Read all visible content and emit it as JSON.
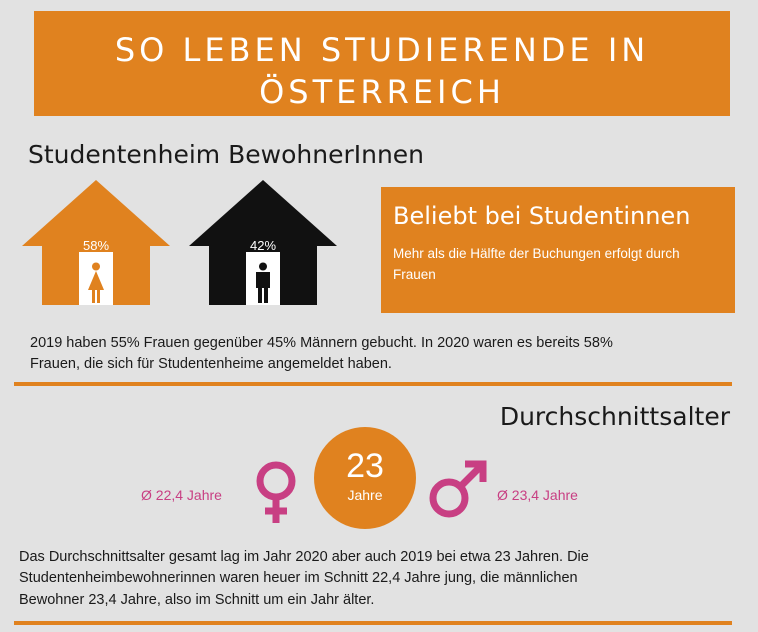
{
  "banner": {
    "line1": "SO LEBEN STUDIERENDE IN",
    "line2": "ÖSTERREICH"
  },
  "section1": {
    "heading": "Studentenheim BewohnerInnen",
    "female_percent": "58%",
    "male_percent": "42%",
    "callout_heading": "Beliebt bei Studentinnen",
    "callout_text": "Mehr als die Hälfte der Buchungen erfolgt durch Frauen",
    "paragraph_line1": "2019 haben 55% Frauen gegenüber 45% Männern gebucht. In 2020 waren es bereits 58%",
    "paragraph_line2": "Frauen, die sich für Studentenheime angemeldet haben."
  },
  "section2": {
    "heading": "Durchschnittsalter",
    "average_age": "23",
    "average_age_unit": "Jahre",
    "female_avg": "Ø 22,4 Jahre",
    "male_avg": "Ø 23,4 Jahre",
    "paragraph_line1": "Das Durchschnittsalter gesamt lag im Jahr 2020 aber auch 2019 bei etwa 23 Jahren. Die",
    "paragraph_line2": "Studentenheimbewohnerinnen waren heuer im Schnitt 22,4 Jahre jung, die männlichen",
    "paragraph_line3": "Bewohner 23,4 Jahre, also im Schnitt um ein Jahr älter."
  },
  "colors": {
    "accent": "#e0821f",
    "female_symbol": "#c83f83",
    "male_house": "#111111",
    "background": "#e2e2e2"
  },
  "icons": [
    "house-icon",
    "woman-icon",
    "man-icon",
    "female-symbol-icon",
    "male-symbol-icon"
  ]
}
